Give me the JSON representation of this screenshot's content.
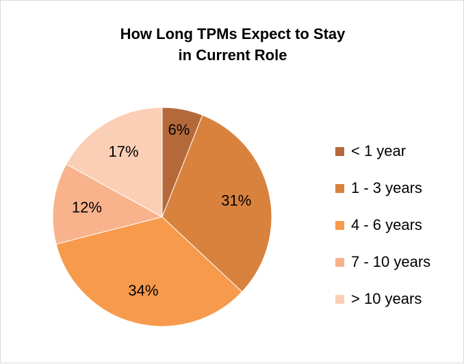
{
  "chart_data": {
    "type": "pie",
    "title_lines": [
      "How Long TPMs Expect to Stay",
      "in Current Role"
    ],
    "slices": [
      {
        "label": "< 1 year",
        "value": 6,
        "display": "6%",
        "color": "#b5693a"
      },
      {
        "label": "1 - 3 years",
        "value": 31,
        "display": "31%",
        "color": "#d9823e"
      },
      {
        "label": "4 - 6 years",
        "value": 34,
        "display": "34%",
        "color": "#f79a4c"
      },
      {
        "label": "7 - 10 years",
        "value": 12,
        "display": "12%",
        "color": "#f9b38c"
      },
      {
        "label": "> 10 years",
        "value": 17,
        "display": "17%",
        "color": "#fbcfb5"
      }
    ],
    "legend_position": "right"
  }
}
